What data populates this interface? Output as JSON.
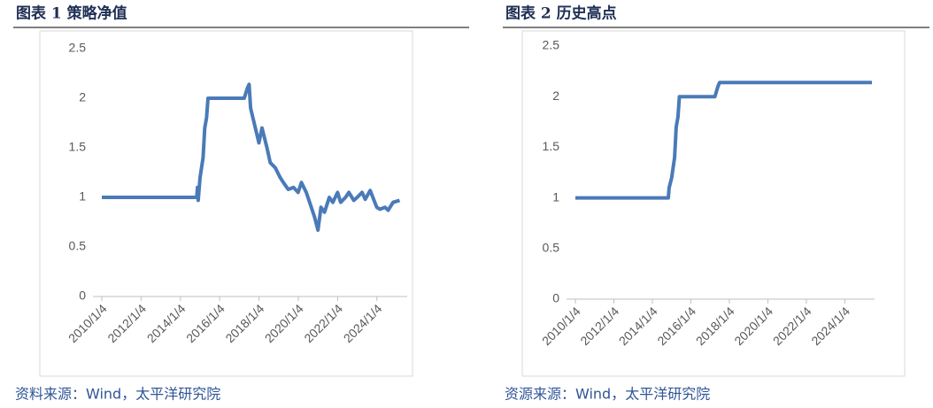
{
  "chart_data": [
    {
      "type": "line",
      "title": "图表 1 策略净值",
      "source": "资料来源：Wind，太平洋研究院",
      "color": "#4a7ab8",
      "x": [
        "2010/1/4",
        "2014/11/3",
        "2014/11/17",
        "2014/12/1",
        "2015/1/5",
        "2015/3/2",
        "2015/4/1",
        "2015/5/4",
        "2015/6/1",
        "2017/4/5",
        "2017/6/1",
        "2017/7/3",
        "2017/8/1",
        "2018/1/2",
        "2018/3/1",
        "2018/6/1",
        "2018/8/1",
        "2018/11/1",
        "2019/2/1",
        "2019/4/1",
        "2019/7/1",
        "2019/10/8",
        "2020/1/2",
        "2020/3/2",
        "2020/6/1",
        "2020/8/3",
        "2020/11/2",
        "2021/1/4",
        "2021/3/1",
        "2021/5/6",
        "2021/8/2",
        "2021/10/8",
        "2022/1/4",
        "2022/3/1",
        "2022/6/1",
        "2022/8/1",
        "2022/11/1",
        "2023/1/3",
        "2023/4/3",
        "2023/6/1",
        "2023/9/1",
        "2024/1/2",
        "2024/3/1",
        "2024/6/3",
        "2024/8/1",
        "2024/11/1",
        "2025/3/3"
      ],
      "values": [
        1,
        1,
        1.1,
        0.97,
        1.2,
        1.4,
        1.7,
        1.8,
        2.0,
        2.0,
        2.1,
        2.14,
        1.9,
        1.55,
        1.7,
        1.5,
        1.35,
        1.3,
        1.2,
        1.15,
        1.08,
        1.1,
        1.05,
        1.15,
        1.05,
        0.95,
        0.8,
        0.67,
        0.9,
        0.85,
        1.0,
        0.95,
        1.05,
        0.95,
        1.0,
        1.05,
        0.97,
        1.0,
        1.05,
        0.98,
        1.07,
        0.9,
        0.88,
        0.9,
        0.87,
        0.95,
        0.97
      ],
      "xlim": [
        "2010/1/4",
        "2025/6/1"
      ],
      "xticks": [
        "2010/1/4",
        "2012/1/4",
        "2014/1/4",
        "2016/1/4",
        "2018/1/4",
        "2020/1/4",
        "2022/1/4",
        "2024/1/4"
      ],
      "ylim": [
        0,
        2.5
      ],
      "yticks": [
        0,
        0.5,
        1,
        1.5,
        2,
        2.5
      ]
    },
    {
      "type": "line",
      "title": "图表 2 历史高点",
      "source": "资源来源：Wind，太平洋研究院",
      "color": "#4a7ab8",
      "x": [
        "2010/1/4",
        "2014/11/3",
        "2014/11/17",
        "2015/1/5",
        "2015/3/2",
        "2015/4/1",
        "2015/5/4",
        "2015/6/1",
        "2017/4/5",
        "2017/6/1",
        "2017/7/3",
        "2025/6/1"
      ],
      "values": [
        1,
        1,
        1.1,
        1.2,
        1.4,
        1.7,
        1.8,
        2.0,
        2.0,
        2.1,
        2.14,
        2.14
      ],
      "xlim": [
        "2010/1/4",
        "2025/6/1"
      ],
      "xticks": [
        "2010/1/4",
        "2012/1/4",
        "2014/1/4",
        "2016/1/4",
        "2018/1/4",
        "2020/1/4",
        "2022/1/4",
        "2024/1/4"
      ],
      "ylim": [
        0,
        2.5
      ],
      "yticks": [
        0,
        0.5,
        1,
        1.5,
        2,
        2.5
      ]
    }
  ]
}
